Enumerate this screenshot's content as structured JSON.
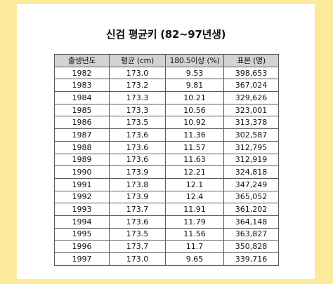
{
  "title": "신검 평균키 (82~97년생)",
  "table": {
    "headers": [
      "출생년도",
      "평균 (cm)",
      "180.5이상 (%)",
      "표본 (명)"
    ],
    "rows": [
      [
        "1982",
        "173.0",
        "9.53",
        "398,653"
      ],
      [
        "1983",
        "173.2",
        "9.81",
        "367,024"
      ],
      [
        "1984",
        "173.3",
        "10.21",
        "329,626"
      ],
      [
        "1985",
        "173.3",
        "10.56",
        "323,001"
      ],
      [
        "1986",
        "173.5",
        "10.92",
        "313,378"
      ],
      [
        "1987",
        "173.6",
        "11.36",
        "302,587"
      ],
      [
        "1988",
        "173.6",
        "11.57",
        "312,795"
      ],
      [
        "1989",
        "173.6",
        "11.63",
        "312,919"
      ],
      [
        "1990",
        "173.9",
        "12.21",
        "324,818"
      ],
      [
        "1991",
        "173.8",
        "12.1",
        "347,249"
      ],
      [
        "1992",
        "173.9",
        "12.4",
        "365,052"
      ],
      [
        "1993",
        "173.7",
        "11.91",
        "361,202"
      ],
      [
        "1994",
        "173.6",
        "11.79",
        "364,148"
      ],
      [
        "1995",
        "173.5",
        "11.56",
        "363,827"
      ],
      [
        "1996",
        "173.7",
        "11.7",
        "350,828"
      ],
      [
        "1997",
        "173.0",
        "9.65",
        "339,716"
      ]
    ]
  },
  "colors": {
    "background": "#fcea9c",
    "card": "#ffffff",
    "header_fill": "#d3d3d3",
    "border": "#5a5a5a"
  }
}
